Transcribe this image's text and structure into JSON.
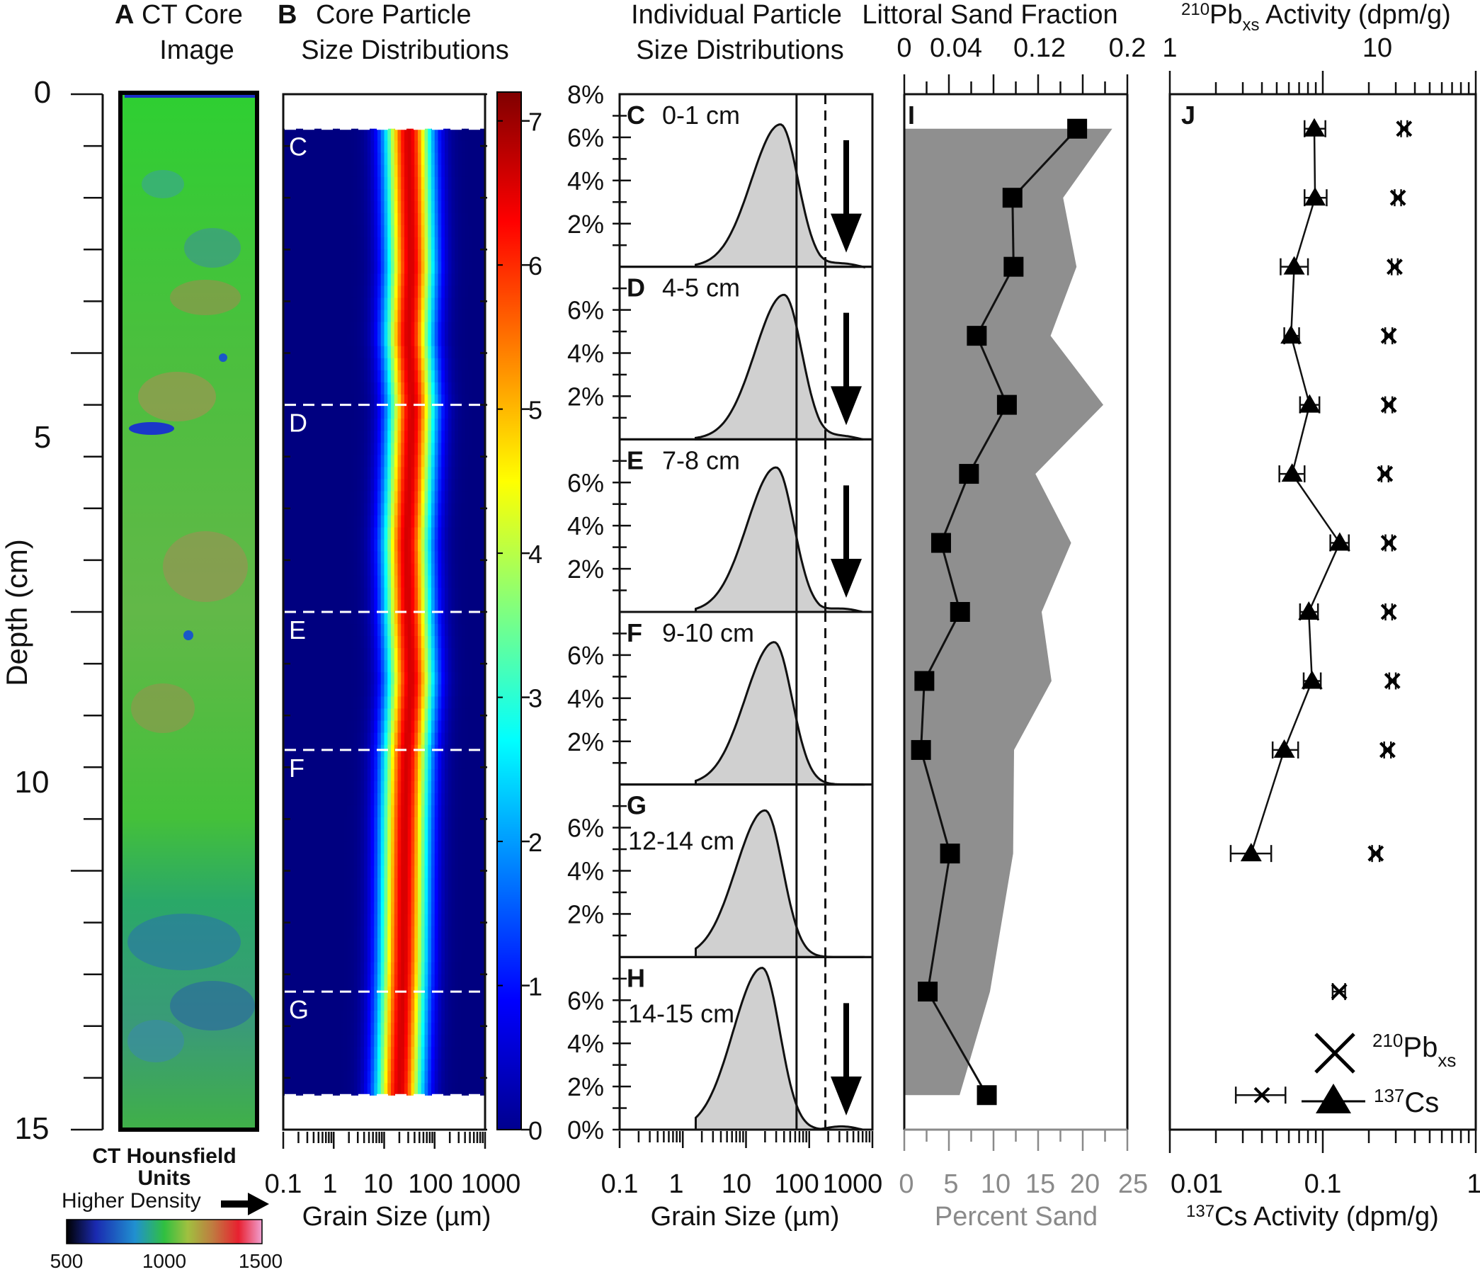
{
  "titles": {
    "A": {
      "letter": "A",
      "line1": "CT Core",
      "line2": "Image"
    },
    "B": {
      "letter": "B",
      "line1": "Core Particle",
      "line2": "Size Distributions"
    },
    "CH": {
      "line1": "Individual Particle",
      "line2": "Size Distributions"
    },
    "I": {
      "line1": "Littoral Sand Fraction"
    },
    "J": {
      "line1_pre": "210",
      "line1_main": "Pb",
      "line1_sub": "xs",
      "line1_post": " Activity (dpm/g)"
    }
  },
  "depth_axis": {
    "label": "Depth (cm)",
    "ticks": [
      "0",
      "5",
      "10",
      "15"
    ]
  },
  "ct_legend": {
    "title1": "CT Hounsfield",
    "title2": "Units",
    "arrow_label": "Higher Density",
    "ticks": [
      "500",
      "1000",
      "1500"
    ]
  },
  "colorbar": {
    "ticks": [
      "0",
      "1",
      "2",
      "3",
      "4",
      "5",
      "6",
      "7"
    ]
  },
  "grain_axis": {
    "label": "Grain Size (µm)",
    "ticks": [
      "0.1",
      "1",
      "10",
      "100",
      "1000"
    ]
  },
  "pct_ticks": [
    "2%",
    "4%",
    "6%",
    "8%"
  ],
  "pct_zero": "0%",
  "ct_colors": {
    "low": "#0a1aa8",
    "mid": "#1ec51e",
    "high": "#c08050",
    "frame": "#000000"
  },
  "chart_data": [
    {
      "id": "B",
      "type": "heatmap",
      "title": "Core Particle Size Distributions",
      "xlabel": "Grain Size (µm)",
      "ylabel": "Depth (cm)",
      "x_scale": "log",
      "xlim": [
        0.1,
        1000
      ],
      "ylim": [
        15,
        0
      ],
      "colorbar_range": [
        0,
        7.2
      ],
      "sample_markers": [
        {
          "label": "C",
          "depth": 0.5
        },
        {
          "label": "D",
          "depth": 4.5
        },
        {
          "label": "E",
          "depth": 7.5
        },
        {
          "label": "F",
          "depth": 9.5
        },
        {
          "label": "G",
          "depth": 13
        },
        {
          "label": "H",
          "depth": 14.5
        }
      ],
      "mode_um_by_depth": {
        "depths": [
          0.5,
          1.5,
          2.5,
          3.5,
          4.5,
          5.5,
          6.5,
          7.5,
          8.5,
          9.5,
          10.5,
          11.5,
          12.5,
          13.5,
          14.5
        ],
        "mode_um": [
          30,
          32,
          34,
          30,
          36,
          32,
          28,
          30,
          34,
          28,
          26,
          25,
          24,
          22,
          20
        ]
      }
    },
    {
      "id": "C-H",
      "type": "area",
      "title": "Individual Particle Size Distributions",
      "xlabel": "Grain Size (µm)",
      "x_scale": "log",
      "xlim": [
        0.1,
        1000
      ],
      "ylim": [
        0,
        8
      ],
      "reference_lines_um": {
        "solid": 63,
        "dashed": 180
      },
      "panels": [
        {
          "letter": "C",
          "depth_label": "0-1 cm",
          "mode_um": 35,
          "peak_pct": 6.6,
          "arrow": true
        },
        {
          "letter": "D",
          "depth_label": "4-5 cm",
          "mode_um": 40,
          "peak_pct": 6.7,
          "arrow": true
        },
        {
          "letter": "E",
          "depth_label": "7-8 cm",
          "mode_um": 30,
          "peak_pct": 6.7,
          "arrow": true
        },
        {
          "letter": "F",
          "depth_label": "9-10 cm",
          "mode_um": 28,
          "peak_pct": 6.6,
          "arrow": false
        },
        {
          "letter": "G",
          "depth_label": "12-14 cm",
          "mode_um": 20,
          "peak_pct": 6.8,
          "arrow": false
        },
        {
          "letter": "H",
          "depth_label": "14-15 cm",
          "mode_um": 18,
          "peak_pct": 7.5,
          "arrow": true
        }
      ]
    },
    {
      "id": "I",
      "type": "line",
      "title": "Littoral Sand Fraction",
      "panel_letter": "I",
      "x_top_ticks": [
        "0",
        "0.04",
        "0.12",
        "0.2"
      ],
      "x_top_lim": [
        0,
        0.2
      ],
      "xlabel_bottom": "Percent Sand",
      "x_bottom_ticks": [
        "0",
        "5",
        "10",
        "15",
        "20",
        "25"
      ],
      "x_bottom_lim": [
        0,
        25
      ],
      "ylim": [
        15,
        0
      ],
      "series": [
        {
          "type": "line",
          "depth": [
            0.5,
            1.5,
            2.5,
            3.5,
            4.5,
            5.5,
            6.5,
            7.5,
            8.5,
            9.5,
            11.0,
            13.0,
            14.5
          ],
          "fraction": [
            0.155,
            0.097,
            0.098,
            0.065,
            0.092,
            0.058,
            0.033,
            0.05,
            0.018,
            0.015,
            0.041,
            0.021,
            0.074
          ]
        },
        {
          "type": "area",
          "depth": [
            0.5,
            1.5,
            2.5,
            3.5,
            4.5,
            5.5,
            6.5,
            7.5,
            8.5,
            9.5,
            11.0,
            13.0,
            14.5
          ],
          "percent_sand": [
            23.3,
            17.8,
            19.3,
            16.4,
            22.3,
            14.7,
            18.7,
            15.4,
            16.5,
            12.3,
            12.2,
            9.6,
            6.2
          ]
        }
      ]
    },
    {
      "id": "J",
      "type": "scatter",
      "panel_letter": "J",
      "title_top": "210Pb xs Activity (dpm/g)",
      "x_top_scale": "log",
      "x_top_lim": [
        1,
        100
      ],
      "x_top_ticks": [
        "1",
        "10"
      ],
      "xlabel_bottom": "137Cs Activity (dpm/g)",
      "x_bottom_scale": "log",
      "x_bottom_lim": [
        0.01,
        1
      ],
      "x_bottom_ticks": [
        "0.01",
        "0.1",
        "1"
      ],
      "ylim": [
        15,
        0
      ],
      "series": [
        {
          "name": "137Cs",
          "marker": "triangle",
          "depth": [
            0.5,
            1.5,
            2.5,
            3.5,
            4.5,
            5.5,
            6.5,
            7.5,
            8.5,
            9.5,
            11.0
          ],
          "activity": [
            0.088,
            0.089,
            0.065,
            0.062,
            0.082,
            0.063,
            0.129,
            0.081,
            0.085,
            0.056,
            0.034
          ],
          "err_lo": [
            0.076,
            0.076,
            0.053,
            0.056,
            0.071,
            0.052,
            0.112,
            0.071,
            0.075,
            0.047,
            0.025
          ],
          "err_hi": [
            0.104,
            0.106,
            0.08,
            0.07,
            0.095,
            0.076,
            0.148,
            0.093,
            0.097,
            0.069,
            0.046
          ]
        },
        {
          "name": "210Pbxs",
          "marker": "x",
          "depth": [
            0.5,
            1.5,
            2.5,
            3.5,
            4.5,
            5.5,
            6.5,
            7.5,
            8.5,
            9.5,
            11.0,
            13.0,
            14.5
          ],
          "activity": [
            34.0,
            31.0,
            29.5,
            27.0,
            27.0,
            25.5,
            27.0,
            27.0,
            28.5,
            26.5,
            22.2,
            12.8,
            4.0
          ],
          "err_lo": [
            32.5,
            29.5,
            28.2,
            25.6,
            25.6,
            24.2,
            25.7,
            25.7,
            27.2,
            25.2,
            21.0,
            11.6,
            2.7
          ],
          "err_hi": [
            35.7,
            32.5,
            30.9,
            28.5,
            28.5,
            26.9,
            28.4,
            28.4,
            30.0,
            27.9,
            23.5,
            14.0,
            5.7
          ]
        }
      ],
      "legend": {
        "pb_pre": "210",
        "pb_main": "Pb",
        "pb_sub": "xs",
        "cs_pre": "137",
        "cs_main": "Cs"
      },
      "bottom_label": {
        "pre": "137",
        "main": "Cs Activity (dpm/g)"
      }
    }
  ]
}
